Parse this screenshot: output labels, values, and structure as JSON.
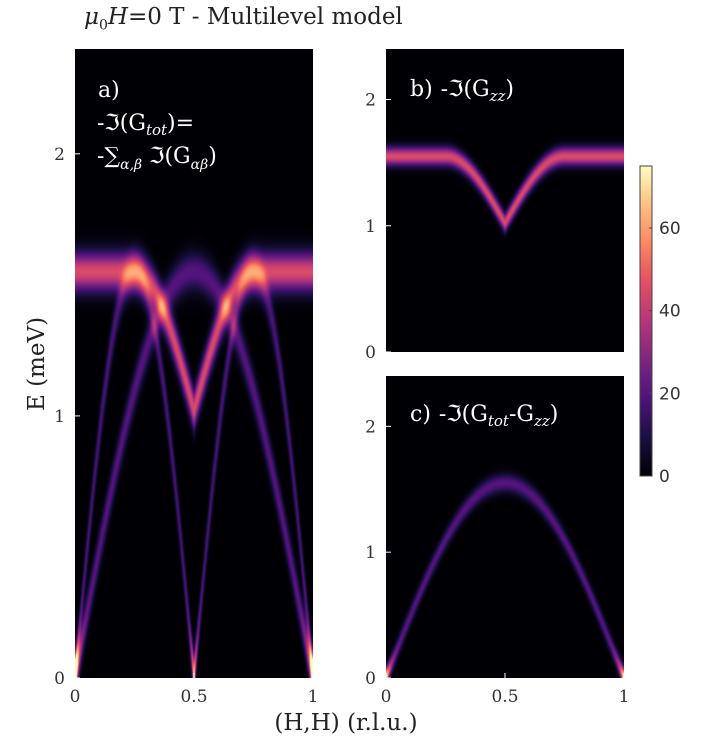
{
  "figure": {
    "title_mu": "μ",
    "title_mu_sub": "0",
    "title_H": "H",
    "title_rest": "=0 T - Multilevel model",
    "xlabel": "(H,H) (r.l.u.)",
    "ylabel": "E (meV)"
  },
  "colormap": "magma",
  "colorbar": {
    "ticks": [
      "0",
      "20",
      "40",
      "60"
    ],
    "tick_values": [
      0,
      20,
      40,
      60
    ],
    "max": 75
  },
  "chart_data": [
    {
      "type": "heatmap",
      "panel_label": "a)",
      "quantity_line1": "-ℑ(G",
      "quantity_line1_sub": "tot",
      "quantity_line1_end": ")=",
      "quantity_line2": "-∑",
      "quantity_line2_sub": "α,β",
      "quantity_line2_mid": " ℑ(G",
      "quantity_line2_sub2": "αβ",
      "quantity_line2_end": ")",
      "xlim": [
        0,
        1
      ],
      "ylim": [
        0,
        2.4
      ],
      "xticks": [
        "0",
        "0.5",
        "1"
      ],
      "xtick_values": [
        0,
        0.5,
        1
      ],
      "yticks": [
        "0",
        "1",
        "2"
      ],
      "ytick_values": [
        0,
        1,
        2
      ],
      "bands": [
        {
          "form": "sine",
          "energy_max": 1.55,
          "period": 1.0,
          "peak_intensity": 20
        },
        {
          "form": "sine",
          "energy_max": 1.55,
          "period": 0.5,
          "peak_intensity": 18
        },
        {
          "form": "v",
          "energy_min": 1.02,
          "energy_max": 1.55,
          "peak_intensity": 45
        }
      ]
    },
    {
      "type": "heatmap",
      "panel_label": "b)",
      "quantity": "-ℑ(G",
      "quantity_sub": "zz",
      "quantity_end": ")",
      "xlim": [
        0,
        1
      ],
      "ylim": [
        0,
        2.4
      ],
      "yticks": [
        "0",
        "1",
        "2"
      ],
      "ytick_values": [
        0,
        1,
        2
      ],
      "bands": [
        {
          "form": "v",
          "energy_min": 1.02,
          "energy_max": 1.55,
          "peak_intensity": 45
        }
      ]
    },
    {
      "type": "heatmap",
      "panel_label": "c)",
      "quantity": "-ℑ(G",
      "quantity_sub": "tot",
      "quantity_mid": "-G",
      "quantity_sub2": "zz",
      "quantity_end": ")",
      "xlim": [
        0,
        1
      ],
      "ylim": [
        0,
        2.4
      ],
      "xticks": [
        "0",
        "0.5",
        "1"
      ],
      "xtick_values": [
        0,
        0.5,
        1
      ],
      "yticks": [
        "0",
        "1",
        "2"
      ],
      "ytick_values": [
        0,
        1,
        2
      ],
      "bands": [
        {
          "form": "sine",
          "energy_max": 1.55,
          "period": 1.0,
          "peak_intensity": 20
        }
      ]
    }
  ]
}
